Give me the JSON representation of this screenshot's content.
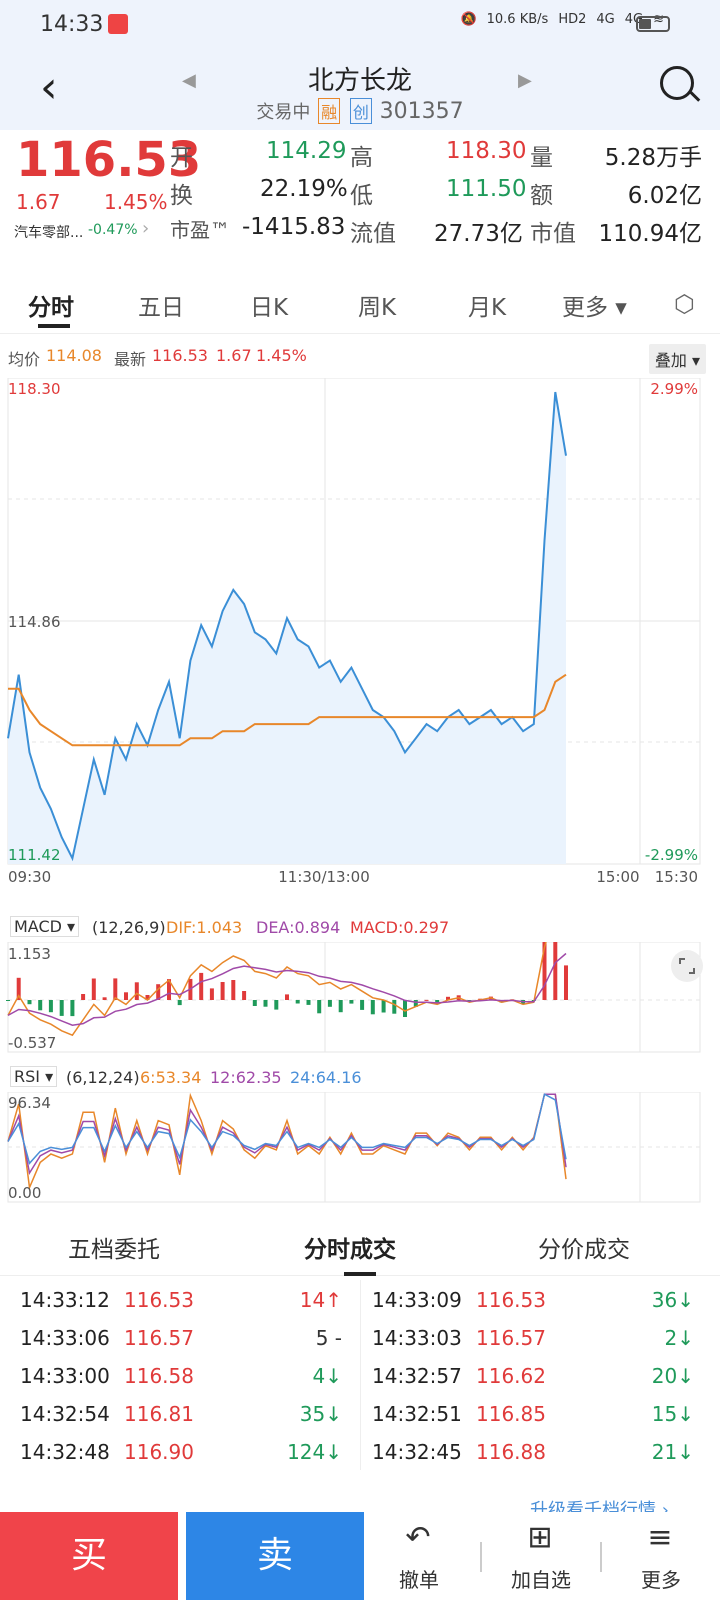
{
  "status": {
    "time": "14:33",
    "net_speed": "10.6 KB/s",
    "hd": "HD2",
    "sig1": "4G",
    "sig2": "4G"
  },
  "header": {
    "name": "北方长龙",
    "state": "交易中",
    "badge_rong": "融",
    "badge_chuang": "创",
    "code": "301357"
  },
  "quote": {
    "price": "116.53",
    "change": "1.67",
    "pct": "1.45%",
    "sector": "汽车零部...",
    "sector_pct": "-0.47%",
    "open_label": "开",
    "open": "114.29",
    "high_label": "高",
    "high": "118.30",
    "vol_label": "量",
    "vol": "5.28万手",
    "turn_label": "换",
    "turn": "22.19%",
    "low_label": "低",
    "low": "111.50",
    "amt_label": "额",
    "amt": "6.02亿",
    "pe_label": "市盈™",
    "pe": "-1415.83",
    "float_label": "流值",
    "float": "27.73亿",
    "cap_label": "市值",
    "cap": "110.94亿"
  },
  "tabs": [
    "分时",
    "五日",
    "日K",
    "周K",
    "月K",
    "更多 ▾"
  ],
  "info": {
    "avg_label": "均价",
    "avg": "114.08",
    "last_label": "最新",
    "last": "116.53",
    "chg": "1.67",
    "pct": "1.45%",
    "overlay": "叠加 ▾"
  },
  "main_axis": {
    "top": "118.30",
    "mid": "114.86",
    "bottom": "111.42",
    "top_pct": "2.99%",
    "bottom_pct": "-2.99%",
    "t0": "09:30",
    "t1": "11:30/13:00",
    "t2": "15:00",
    "t3": "15:30"
  },
  "macd": {
    "label": "MACD ▾",
    "params": "(12,26,9)",
    "dif": "DIF:1.043",
    "dea": "DEA:0.894",
    "macd": "MACD:0.297",
    "ymax": "1.153",
    "ymin": "-0.537"
  },
  "rsi": {
    "label": "RSI ▾",
    "params": "(6,12,24)",
    "r6": "6:53.34",
    "r12": "12:62.35",
    "r24": "24:64.16",
    "ymax": "96.34",
    "ymin": "0.00"
  },
  "subtabs": [
    "五档委托",
    "分时成交",
    "分价成交"
  ],
  "trades_left": [
    {
      "t": "14:33:12",
      "p": "116.53",
      "v": "14↑",
      "c": "red"
    },
    {
      "t": "14:33:06",
      "p": "116.57",
      "v": "5 -",
      "c": "gray"
    },
    {
      "t": "14:33:00",
      "p": "116.58",
      "v": "4↓",
      "c": "green"
    },
    {
      "t": "14:32:54",
      "p": "116.81",
      "v": "35↓",
      "c": "green"
    },
    {
      "t": "14:32:48",
      "p": "116.90",
      "v": "124↓",
      "c": "green"
    }
  ],
  "trades_right": [
    {
      "t": "14:33:09",
      "p": "116.53",
      "v": "36↓",
      "c": "green"
    },
    {
      "t": "14:33:03",
      "p": "116.57",
      "v": "2↓",
      "c": "green"
    },
    {
      "t": "14:32:57",
      "p": "116.62",
      "v": "20↓",
      "c": "green"
    },
    {
      "t": "14:32:51",
      "p": "116.85",
      "v": "15↓",
      "c": "green"
    },
    {
      "t": "14:32:45",
      "p": "116.88",
      "v": "21↓",
      "c": "green"
    }
  ],
  "more_link": "升级看千档行情 ›",
  "bottom": {
    "buy": "买",
    "sell": "卖",
    "cancel": "撤单",
    "watch": "加自选",
    "more": "更多"
  },
  "chart_data": {
    "type": "line",
    "price_series": [
      113.2,
      114.1,
      113.0,
      112.5,
      112.2,
      111.8,
      111.5,
      112.2,
      112.9,
      112.4,
      113.2,
      112.9,
      113.4,
      113.1,
      113.6,
      114.0,
      113.2,
      114.3,
      114.8,
      114.5,
      115.0,
      115.3,
      115.1,
      114.7,
      114.6,
      114.4,
      114.9,
      114.6,
      114.5,
      114.2,
      114.3,
      114.0,
      114.2,
      113.9,
      113.6,
      113.5,
      113.3,
      113.0,
      113.2,
      113.4,
      113.3,
      113.5,
      113.6,
      113.4,
      113.5,
      113.6,
      113.4,
      113.5,
      113.3,
      113.4,
      116.0,
      118.1,
      117.2
    ],
    "avg_series": [
      113.9,
      113.9,
      113.6,
      113.4,
      113.3,
      113.2,
      113.1,
      113.1,
      113.1,
      113.1,
      113.1,
      113.1,
      113.1,
      113.1,
      113.1,
      113.1,
      113.1,
      113.2,
      113.2,
      113.2,
      113.3,
      113.3,
      113.3,
      113.4,
      113.4,
      113.4,
      113.4,
      113.4,
      113.4,
      113.5,
      113.5,
      113.5,
      113.5,
      113.5,
      113.5,
      113.5,
      113.5,
      113.5,
      113.5,
      113.5,
      113.5,
      113.5,
      113.5,
      113.5,
      113.5,
      113.5,
      113.5,
      113.5,
      113.5,
      113.5,
      113.6,
      114.0,
      114.1
    ],
    "ylim": [
      111.42,
      118.3
    ],
    "x_ticks": [
      "09:30",
      "11:30/13:00",
      "15:00",
      "15:30"
    ]
  }
}
